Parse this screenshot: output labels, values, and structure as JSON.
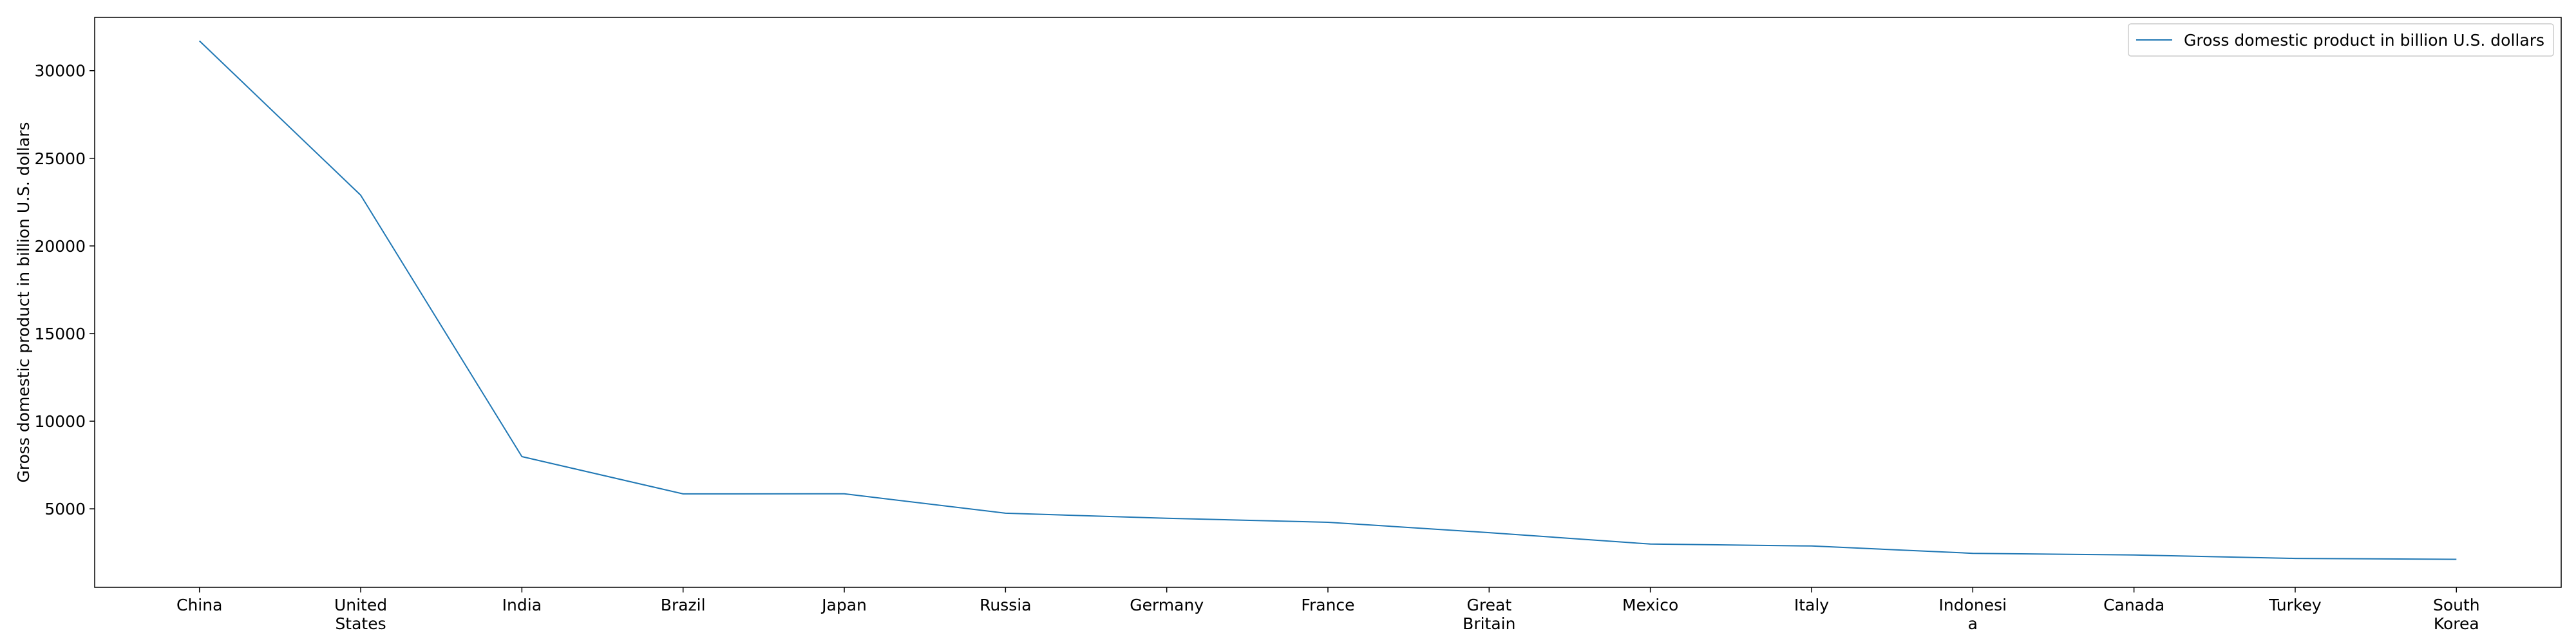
{
  "chart_data": {
    "type": "line",
    "title": "",
    "xlabel": "",
    "ylabel": "Gross domestic product in billion U.S. dollars",
    "categories": [
      [
        "China"
      ],
      [
        "United",
        "States"
      ],
      [
        "India"
      ],
      [
        "Brazil"
      ],
      [
        "Japan"
      ],
      [
        "Russia"
      ],
      [
        "Germany"
      ],
      [
        "France"
      ],
      [
        "Great",
        "Britain"
      ],
      [
        "Mexico"
      ],
      [
        "Italy"
      ],
      [
        "Indonesi",
        "a"
      ],
      [
        "Canada"
      ],
      [
        "Turkey"
      ],
      [
        "South",
        "Korea"
      ]
    ],
    "series": [
      {
        "name": "Gross domestic product in billion U.S. dollars",
        "color": "#1f77b4",
        "values": [
          31700,
          22900,
          7980,
          5850,
          5860,
          4750,
          4460,
          4230,
          3640,
          2990,
          2880,
          2460,
          2370,
          2170,
          2120
        ]
      }
    ],
    "yticks": [
      5000,
      10000,
      15000,
      20000,
      25000,
      30000
    ],
    "ylim": [
      520,
      33040
    ],
    "grid": false,
    "legend": "top-right"
  }
}
